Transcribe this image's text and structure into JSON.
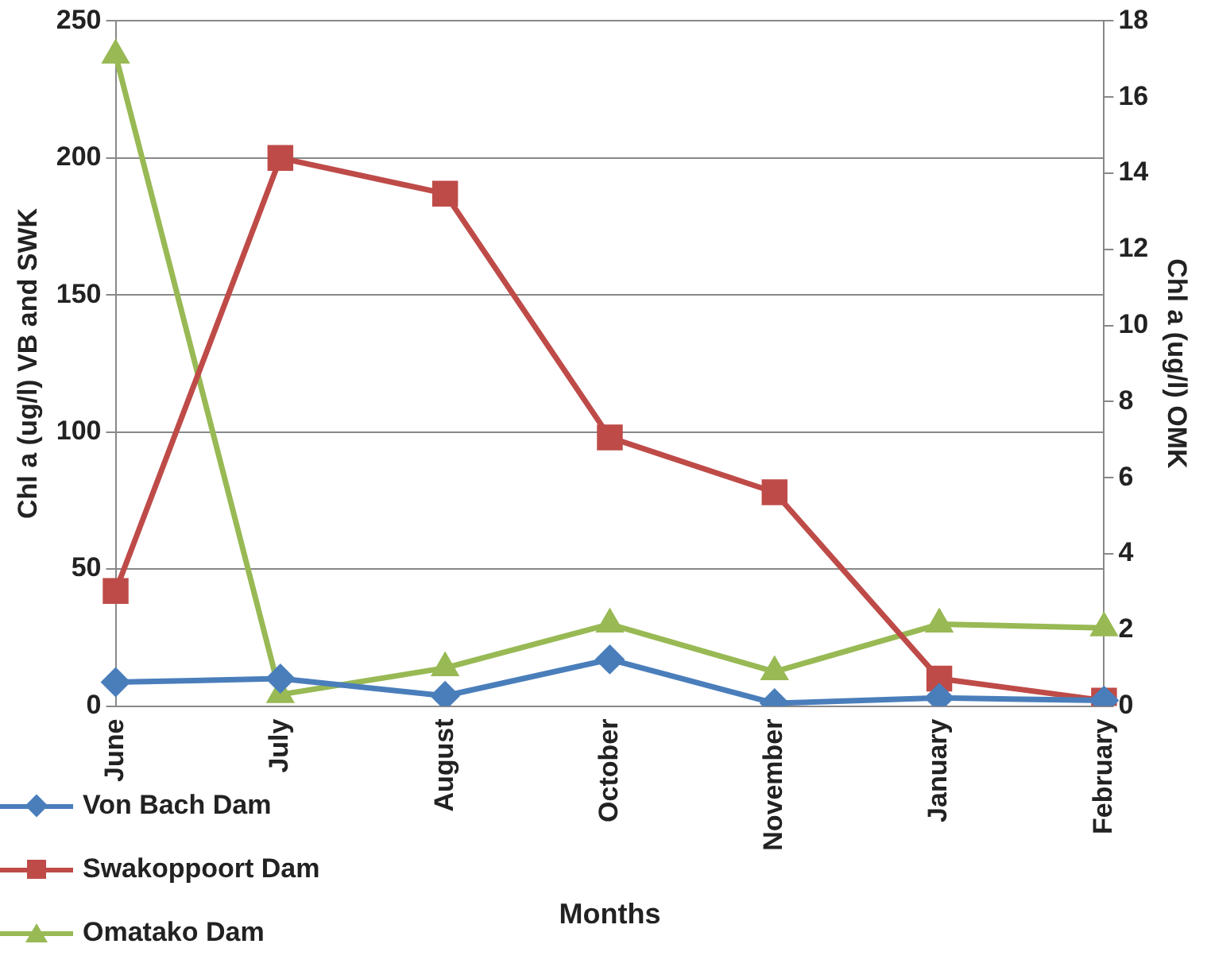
{
  "chart_data": {
    "type": "line",
    "xlabel": "Months",
    "ylabel": "Chl a (ug/l) VB and SWK",
    "y2label": "Chl a (ug/l) OMK",
    "categories": [
      "June",
      "July",
      "August",
      "October",
      "November",
      "January",
      "February"
    ],
    "series": [
      {
        "name": "Von Bach Dam",
        "color": "#4a7ebb",
        "marker": "diamond",
        "values": [
          8.7,
          10,
          3.7,
          17,
          1,
          3,
          2
        ]
      },
      {
        "name": "Swakoppoort Dam",
        "color": "#be4b48",
        "marker": "square",
        "values": [
          42,
          200,
          187,
          98,
          78,
          10,
          2
        ]
      },
      {
        "name": "Omatako Dam",
        "color": "#98b954",
        "marker": "triangle",
        "axis": "y2",
        "values": [
          17.1,
          0.3,
          1.0,
          2.15,
          0.9,
          2.15,
          2.05
        ]
      }
    ],
    "ylim": [
      0,
      250
    ],
    "yticks": [
      0,
      50,
      100,
      150,
      200,
      250
    ],
    "y2lim": [
      0,
      18
    ],
    "y2ticks": [
      0,
      2,
      4,
      6,
      8,
      10,
      12,
      14,
      16,
      18
    ],
    "grid": "y",
    "legend": "bottom left",
    "line_style": "solid"
  }
}
